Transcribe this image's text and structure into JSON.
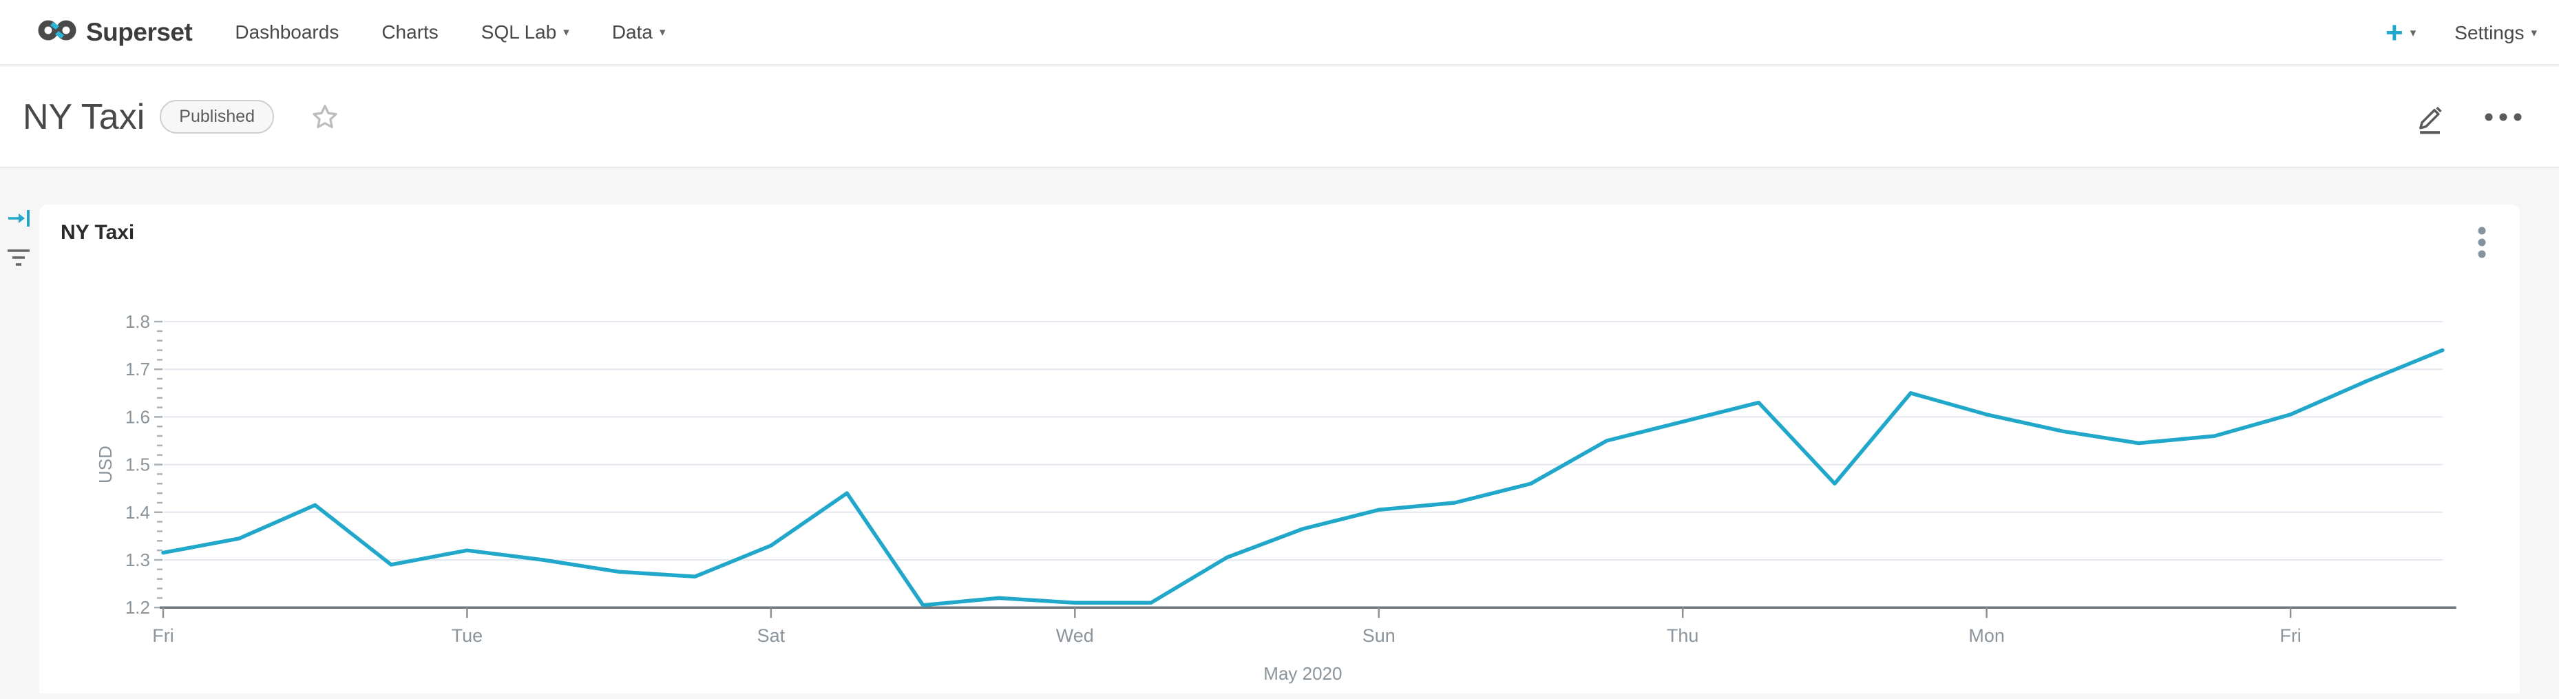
{
  "navbar": {
    "brand": "Superset",
    "items": [
      {
        "label": "Dashboards"
      },
      {
        "label": "Charts"
      },
      {
        "label": "SQL Lab"
      },
      {
        "label": "Data"
      }
    ],
    "plus_label": "+",
    "settings_label": "Settings"
  },
  "dashboard_header": {
    "title": "NY Taxi",
    "status_badge": "Published"
  },
  "chart_card": {
    "title": "NY Taxi"
  },
  "chart_data": {
    "type": "line",
    "title": "NY Taxi",
    "ylabel": "USD",
    "xlabel": "May 2020",
    "line_color": "#20A7C9",
    "grid": true,
    "legend": "none",
    "ylim": [
      1.2,
      1.8
    ],
    "yticks": [
      "1.2",
      "1.3",
      "1.4",
      "1.5",
      "1.6",
      "1.7",
      "1.8"
    ],
    "x_dates": [
      "2020-05-01",
      "2020-05-02",
      "2020-05-03",
      "2020-05-04",
      "2020-05-05",
      "2020-05-06",
      "2020-05-07",
      "2020-05-08",
      "2020-05-09",
      "2020-05-10",
      "2020-05-11",
      "2020-05-12",
      "2020-05-13",
      "2020-05-14",
      "2020-05-15",
      "2020-05-16",
      "2020-05-17",
      "2020-05-18",
      "2020-05-19",
      "2020-05-20",
      "2020-05-21",
      "2020-05-22",
      "2020-05-23",
      "2020-05-24",
      "2020-05-25",
      "2020-05-26",
      "2020-05-27",
      "2020-05-28",
      "2020-05-29",
      "2020-05-30",
      "2020-05-31"
    ],
    "values": [
      1.315,
      1.345,
      1.415,
      1.29,
      1.32,
      1.3,
      1.275,
      1.265,
      1.33,
      1.44,
      1.205,
      1.22,
      1.21,
      1.21,
      1.305,
      1.365,
      1.405,
      1.42,
      1.46,
      1.55,
      1.59,
      1.63,
      1.46,
      1.65,
      1.605,
      1.57,
      1.545,
      1.56,
      1.605,
      1.675,
      1.74
    ],
    "xticks": [
      {
        "day": 1,
        "label": "Fri"
      },
      {
        "day": 5,
        "label": "Tue"
      },
      {
        "day": 9,
        "label": "Sat"
      },
      {
        "day": 13,
        "label": "Wed"
      },
      {
        "day": 17,
        "label": "Sun"
      },
      {
        "day": 21,
        "label": "Thu"
      },
      {
        "day": 25,
        "label": "Mon"
      },
      {
        "day": 29,
        "label": "Fri"
      }
    ]
  },
  "colors": {
    "accent": "#20A7C9",
    "axis_text": "#8B949B",
    "gridline": "#E4E8F0",
    "axis_line": "#70777E"
  }
}
